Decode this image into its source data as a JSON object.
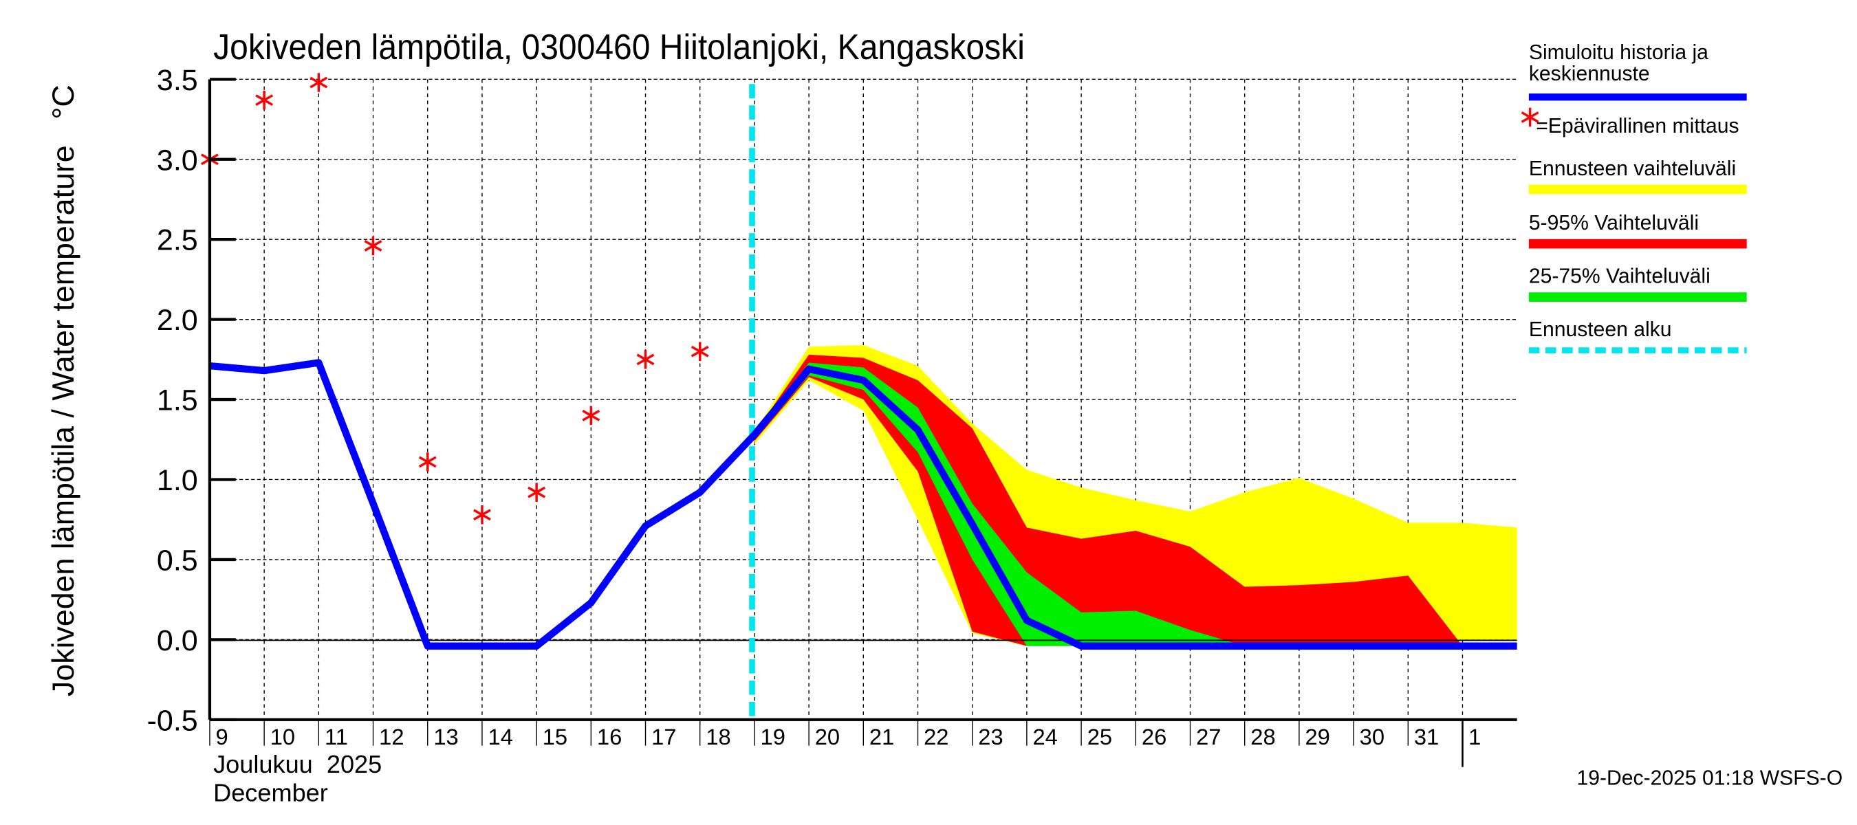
{
  "chart_data": {
    "type": "area",
    "title": "Jokiveden lämpötila, 0300460 Hiitolanjoki, Kangaskoski",
    "ylabel": "Jokiveden lämpötila / Water temperature",
    "yunit": "°C",
    "ylim": [
      -0.5,
      3.5
    ],
    "yticks": [
      "3.5",
      "3.0",
      "2.5",
      "2.0",
      "1.5",
      "1.0",
      "0.5",
      "0.0",
      "-0.5"
    ],
    "ytick_values": [
      3.5,
      3.0,
      2.5,
      2.0,
      1.5,
      1.0,
      0.5,
      0.0,
      -0.5
    ],
    "xticks": [
      "9",
      "10",
      "11",
      "12",
      "13",
      "14",
      "15",
      "16",
      "17",
      "18",
      "19",
      "20",
      "21",
      "22",
      "23",
      "24",
      "25",
      "26",
      "27",
      "28",
      "29",
      "30",
      "31",
      "1"
    ],
    "x_month_fi": "Joulukuu  2025",
    "x_month_en": "December",
    "grid": true,
    "forecast_start_day_index": 10,
    "series": [
      {
        "name": "Simuloitu historia ja keskiennuste",
        "color": "#0000ff",
        "start_index": 0,
        "values": [
          1.71,
          1.68,
          1.73,
          0.85,
          -0.04,
          -0.04,
          -0.04,
          0.23,
          0.71,
          0.92,
          1.28,
          1.69,
          1.62,
          1.31,
          0.72,
          0.12,
          -0.04,
          -0.04,
          -0.04,
          -0.04,
          -0.04,
          -0.04,
          -0.04,
          -0.04,
          -0.04
        ]
      },
      {
        "name": "=Epävirallinen mittaus",
        "color": "#ff0000",
        "marker": "asterisk",
        "start_index": 0,
        "values": [
          3.0,
          3.37,
          3.48,
          2.46,
          1.11,
          0.78,
          0.92,
          1.4,
          1.75,
          1.8
        ]
      }
    ],
    "bands": [
      {
        "name": "Ennusteen vaihteluväli",
        "color": "#ffff00",
        "start_index": 10,
        "upper": [
          1.3,
          1.83,
          1.84,
          1.71,
          1.35,
          1.06,
          0.95,
          0.87,
          0.8,
          0.92,
          1.01,
          0.88,
          0.73,
          0.73,
          0.7
        ],
        "lower": [
          1.22,
          1.62,
          1.43,
          0.75,
          0.04,
          -0.04,
          -0.04,
          -0.04,
          -0.04,
          -0.04,
          -0.04,
          -0.04,
          -0.04,
          0.0,
          0.0
        ]
      },
      {
        "name": "5-95% Vaihteluväli",
        "color": "#ff0000",
        "start_index": 10,
        "upper": [
          1.29,
          1.78,
          1.76,
          1.62,
          1.32,
          0.7,
          0.63,
          0.68,
          0.58,
          0.33,
          0.34,
          0.36,
          0.4,
          -0.04,
          -0.04
        ],
        "lower": [
          1.24,
          1.64,
          1.5,
          1.05,
          0.05,
          -0.04,
          -0.04,
          -0.04,
          -0.04,
          -0.04,
          -0.04,
          -0.04,
          -0.04,
          -0.04,
          -0.04
        ]
      },
      {
        "name": "25-75% Vaihteluväli",
        "color": "#00ee00",
        "start_index": 10,
        "upper": [
          1.28,
          1.73,
          1.7,
          1.45,
          0.85,
          0.42,
          0.17,
          0.18,
          0.06,
          -0.04,
          -0.04,
          -0.04,
          -0.04,
          -0.04,
          -0.04
        ],
        "lower": [
          1.25,
          1.65,
          1.56,
          1.17,
          0.5,
          -0.04,
          -0.04,
          -0.04,
          -0.04,
          -0.04,
          -0.04,
          -0.04,
          -0.04,
          -0.04,
          -0.04
        ]
      }
    ],
    "legend": {
      "position": "right",
      "sim_line1": "Simuloitu historia ja",
      "sim_line2": "keskiennuste",
      "obs": "=Epävirallinen mittaus",
      "range": "Ennusteen vaihteluväli",
      "p595": "5-95% Vaihteluväli",
      "p2575": "25-75% Vaihteluväli",
      "start": "Ennusteen alku",
      "start_color": "#00e5ee"
    },
    "timestamp": "19-Dec-2025 01:18 WSFS-O"
  }
}
